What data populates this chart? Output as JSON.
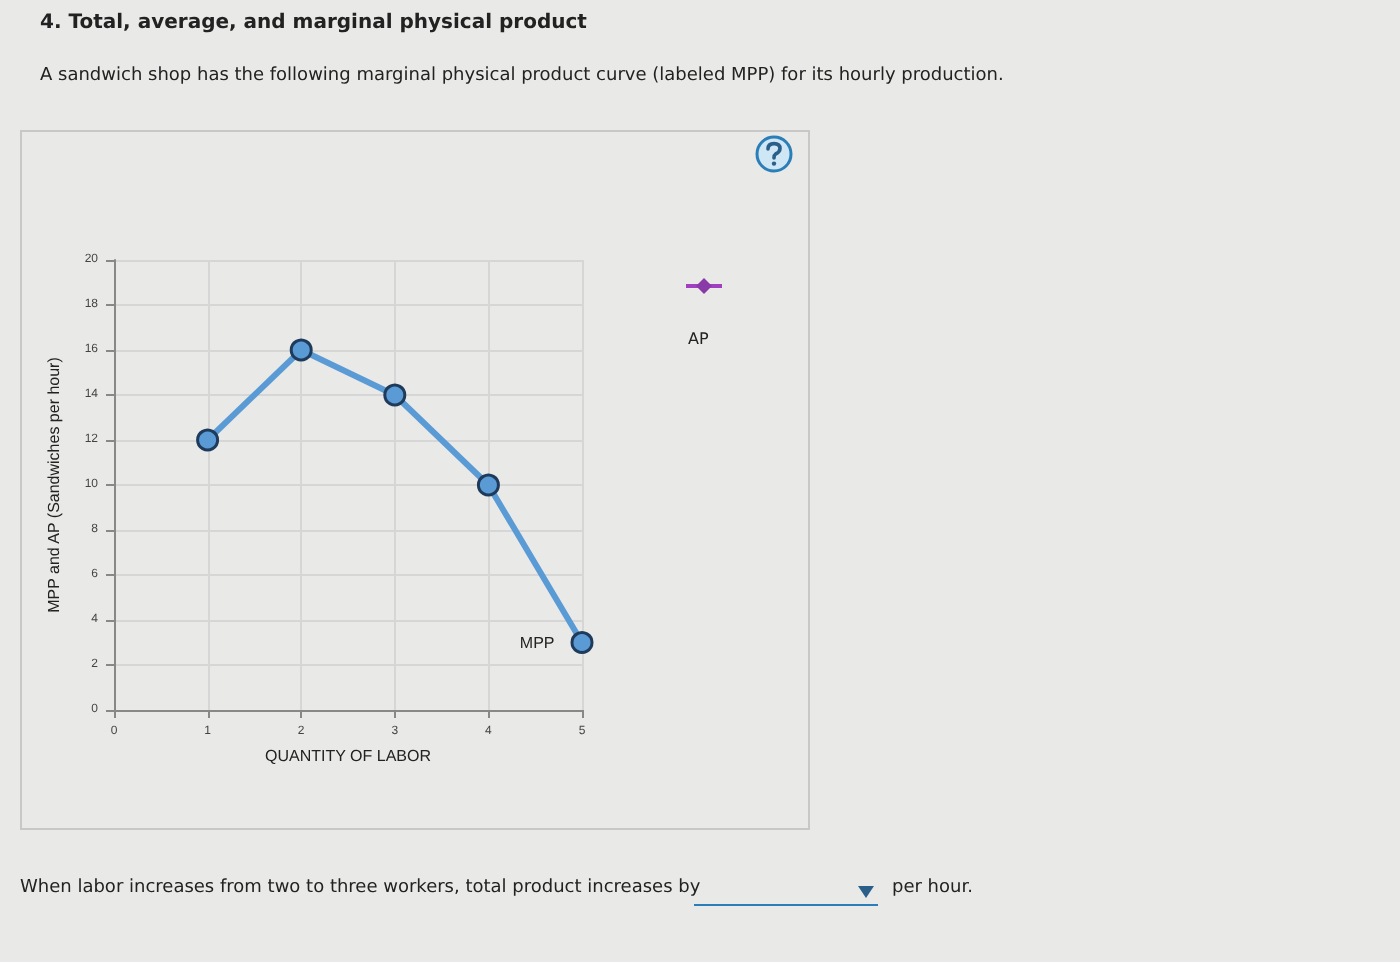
{
  "chart_data": {
    "type": "line",
    "title": "4. Total, average, and marginal physical product",
    "subtitle": "A sandwich shop has the following marginal physical product curve (labeled MPP) for its hourly production.",
    "xlabel": "QUANTITY OF LABOR",
    "ylabel": "MPP and AP (Sandwiches per hour)",
    "x": [
      1,
      2,
      3,
      4,
      5
    ],
    "series": [
      {
        "name": "MPP",
        "color": "#5b9bd5",
        "values": [
          12,
          16,
          14,
          10,
          3
        ]
      }
    ],
    "xlim": [
      0,
      5
    ],
    "xticks": [
      0,
      1,
      2,
      3,
      4,
      5
    ],
    "ylim": [
      0,
      20
    ],
    "yticks": [
      0,
      2,
      4,
      6,
      8,
      10,
      12,
      14,
      16,
      18,
      20
    ],
    "grid": true,
    "legend": false,
    "marker": "circle",
    "line_style": "solid",
    "annotations": [
      "AP",
      "When labor increases from two to three workers, total product increases by",
      "per hour."
    ]
  }
}
